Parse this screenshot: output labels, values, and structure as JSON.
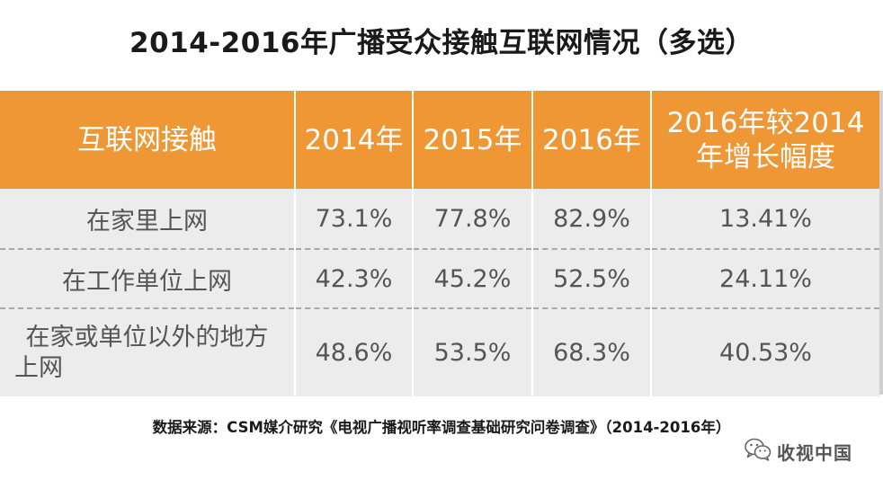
{
  "title": "2014-2016年广播受众接触互联网情况（多选）",
  "chart_data": {
    "type": "table",
    "columns": [
      "互联网接触",
      "2014年",
      "2015年",
      "2016年",
      "2016年较2014年增长幅度"
    ],
    "header": {
      "col0": "互联网接触",
      "col1": "2014年",
      "col2": "2015年",
      "col3": "2016年",
      "col4_line1": "2016年较2014",
      "col4_line2": "年增长幅度"
    },
    "rows": [
      {
        "label": "在家里上网",
        "label_line1": "在家里上网",
        "label_line2": "",
        "y2014": "73.1%",
        "y2015": "77.8%",
        "y2016": "82.9%",
        "growth": "13.41%"
      },
      {
        "label": "在工作单位上网",
        "label_line1": "在工作单位上网",
        "label_line2": "",
        "y2014": "42.3%",
        "y2015": "45.2%",
        "y2016": "52.5%",
        "growth": "24.11%"
      },
      {
        "label": "在家或单位以外的地方上网",
        "label_line1": "在家或单位以外的地方",
        "label_line2": "上网",
        "y2014": "48.6%",
        "y2015": "53.5%",
        "y2016": "68.3%",
        "growth": "40.53%"
      }
    ],
    "values": {
      "在家里上网": [
        73.1,
        77.8,
        82.9,
        13.41
      ],
      "在工作单位上网": [
        42.3,
        45.2,
        52.5,
        24.11
      ],
      "在家或单位以外的地方上网": [
        48.6,
        53.5,
        68.3,
        40.53
      ]
    }
  },
  "source": "数据来源：CSM媒介研究《电视广播视听率调查基础研究问卷调查》（2014-2016年）",
  "watermark": {
    "text": "收视中国",
    "icon": "wechat-icon"
  },
  "colors": {
    "header_bg": "#ef9735",
    "header_text": "#ffffff",
    "body_bg": "#ececec",
    "body_text": "#555555",
    "row_separator": "#a8a8a8"
  }
}
